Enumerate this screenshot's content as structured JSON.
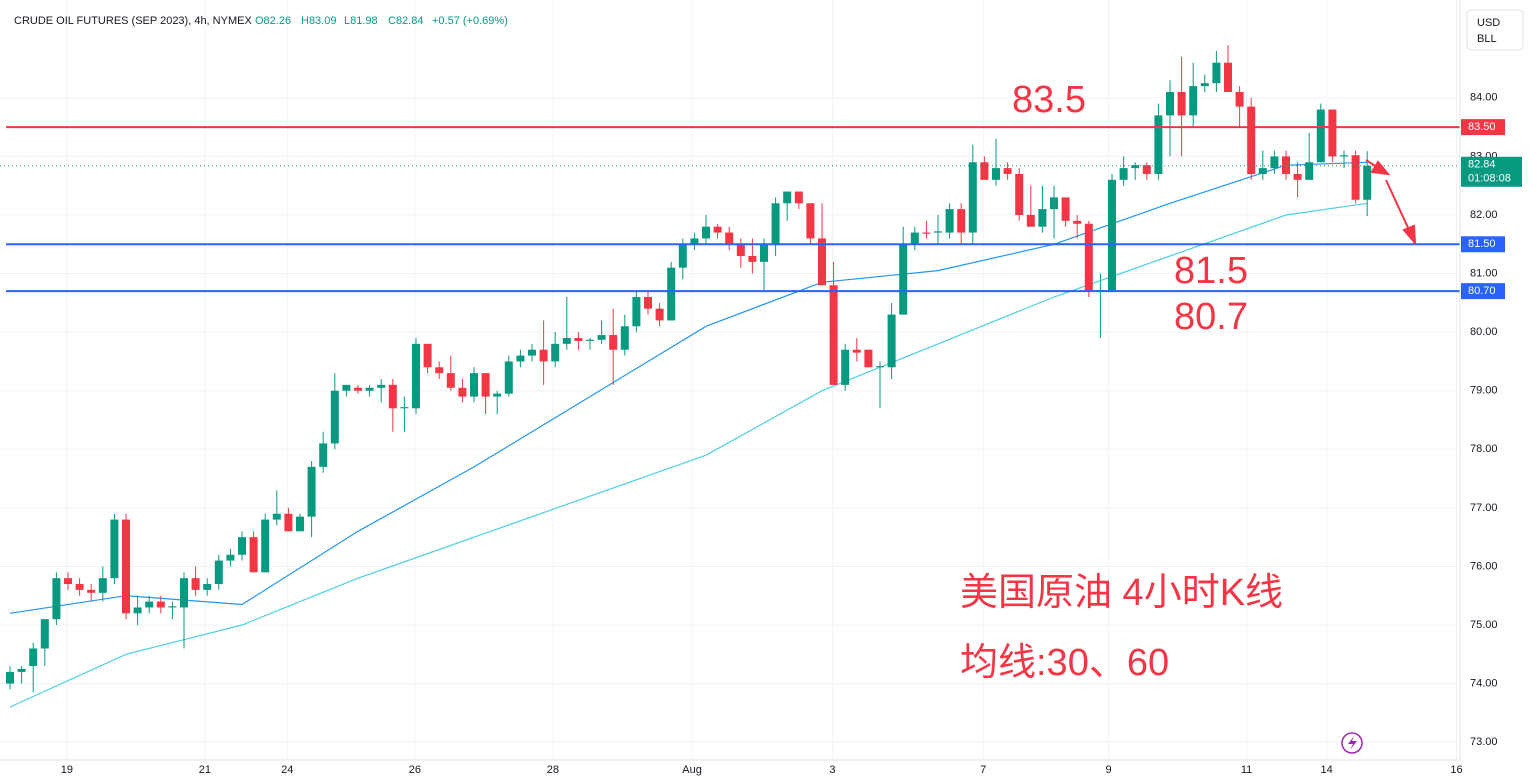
{
  "chart_data": {
    "type": "candlestick",
    "header": {
      "title": "CRUDE OIL FUTURES (SEP 2023), 4h, NYMEX",
      "open": "O82.26",
      "high": "H83.09",
      "low": "L81.98",
      "close": "C82.84",
      "change": "+0.57 (+0.69%)"
    },
    "currency": "USD",
    "unit": "BLL",
    "up_color": "#089981",
    "down_color": "#f23645",
    "candles": [
      [
        74.0,
        74.3,
        73.9,
        74.2
      ],
      [
        74.2,
        74.3,
        74.0,
        74.25
      ],
      [
        74.3,
        74.7,
        73.85,
        74.6
      ],
      [
        74.6,
        75.1,
        74.3,
        75.1
      ],
      [
        75.1,
        75.9,
        75.0,
        75.8
      ],
      [
        75.8,
        75.9,
        75.6,
        75.7
      ],
      [
        75.7,
        75.8,
        75.5,
        75.6
      ],
      [
        75.6,
        75.7,
        75.4,
        75.55
      ],
      [
        75.55,
        76.0,
        75.4,
        75.8
      ],
      [
        75.8,
        76.9,
        75.7,
        76.8
      ],
      [
        76.8,
        76.9,
        75.1,
        75.2
      ],
      [
        75.2,
        75.5,
        75.0,
        75.3
      ],
      [
        75.3,
        75.5,
        75.2,
        75.4
      ],
      [
        75.4,
        75.5,
        75.2,
        75.3
      ],
      [
        75.3,
        75.4,
        75.1,
        75.32
      ],
      [
        75.3,
        75.9,
        74.6,
        75.8
      ],
      [
        75.8,
        76.0,
        75.5,
        75.6
      ],
      [
        75.6,
        75.8,
        75.5,
        75.7
      ],
      [
        75.7,
        76.2,
        75.6,
        76.1
      ],
      [
        76.1,
        76.3,
        76.0,
        76.2
      ],
      [
        76.2,
        76.6,
        76.1,
        76.5
      ],
      [
        76.5,
        76.6,
        75.9,
        75.9
      ],
      [
        75.9,
        76.9,
        75.9,
        76.8
      ],
      [
        76.8,
        77.3,
        76.7,
        76.9
      ],
      [
        76.9,
        77.0,
        76.6,
        76.6
      ],
      [
        76.6,
        76.9,
        76.6,
        76.85
      ],
      [
        76.85,
        77.8,
        76.5,
        77.7
      ],
      [
        77.7,
        78.3,
        77.6,
        78.1
      ],
      [
        78.1,
        79.3,
        78.0,
        79.0
      ],
      [
        79.0,
        79.1,
        78.9,
        79.1
      ],
      [
        79.05,
        79.1,
        78.95,
        79.0
      ],
      [
        79.0,
        79.1,
        78.9,
        79.05
      ],
      [
        79.05,
        79.2,
        78.8,
        79.1
      ],
      [
        79.1,
        79.2,
        78.3,
        78.7
      ],
      [
        78.7,
        78.9,
        78.3,
        78.72
      ],
      [
        78.7,
        79.9,
        78.6,
        79.8
      ],
      [
        79.8,
        79.8,
        79.3,
        79.4
      ],
      [
        79.4,
        79.5,
        79.2,
        79.3
      ],
      [
        79.3,
        79.6,
        79.0,
        79.05
      ],
      [
        79.05,
        79.2,
        78.8,
        78.9
      ],
      [
        78.9,
        79.4,
        78.8,
        79.3
      ],
      [
        79.3,
        79.3,
        78.6,
        78.9
      ],
      [
        78.9,
        79.0,
        78.6,
        78.95
      ],
      [
        78.95,
        79.6,
        78.9,
        79.5
      ],
      [
        79.5,
        79.7,
        79.4,
        79.6
      ],
      [
        79.6,
        79.8,
        79.5,
        79.7
      ],
      [
        79.7,
        80.2,
        79.1,
        79.5
      ],
      [
        79.5,
        80.0,
        79.4,
        79.8
      ],
      [
        79.8,
        80.6,
        79.7,
        79.9
      ],
      [
        79.9,
        80.0,
        79.7,
        79.85
      ],
      [
        79.85,
        79.9,
        79.7,
        79.87
      ],
      [
        79.87,
        80.2,
        79.8,
        79.95
      ],
      [
        79.95,
        80.4,
        79.1,
        79.7
      ],
      [
        79.7,
        80.3,
        79.6,
        80.1
      ],
      [
        80.1,
        80.7,
        80.0,
        80.6
      ],
      [
        80.6,
        80.7,
        80.3,
        80.4
      ],
      [
        80.4,
        80.5,
        80.1,
        80.2
      ],
      [
        80.2,
        81.2,
        80.2,
        81.1
      ],
      [
        81.1,
        81.6,
        80.9,
        81.5
      ],
      [
        81.5,
        81.7,
        81.4,
        81.6
      ],
      [
        81.6,
        82.0,
        81.5,
        81.8
      ],
      [
        81.8,
        81.85,
        81.6,
        81.7
      ],
      [
        81.7,
        81.8,
        81.4,
        81.5
      ],
      [
        81.5,
        81.6,
        81.1,
        81.3
      ],
      [
        81.3,
        81.6,
        81.0,
        81.2
      ],
      [
        81.2,
        81.6,
        80.7,
        81.5
      ],
      [
        81.5,
        82.3,
        81.3,
        82.2
      ],
      [
        82.2,
        82.4,
        81.9,
        82.4
      ],
      [
        82.4,
        82.4,
        82.1,
        82.2
      ],
      [
        82.2,
        82.2,
        81.5,
        81.6
      ],
      [
        81.6,
        82.2,
        80.8,
        80.8
      ],
      [
        80.8,
        81.2,
        79.1,
        79.1
      ],
      [
        79.1,
        79.8,
        79.0,
        79.7
      ],
      [
        79.7,
        79.9,
        79.5,
        79.65
      ],
      [
        79.7,
        79.7,
        79.4,
        79.4
      ],
      [
        79.4,
        79.5,
        78.7,
        79.42
      ],
      [
        79.4,
        80.5,
        79.2,
        80.3
      ],
      [
        80.3,
        81.8,
        80.3,
        81.5
      ],
      [
        81.5,
        81.8,
        81.4,
        81.7
      ],
      [
        81.7,
        81.9,
        81.6,
        81.68
      ],
      [
        81.7,
        82.0,
        81.5,
        81.72
      ],
      [
        81.7,
        82.2,
        81.6,
        82.1
      ],
      [
        82.1,
        82.2,
        81.5,
        81.7
      ],
      [
        81.7,
        83.2,
        81.5,
        82.9
      ],
      [
        82.9,
        83.0,
        82.6,
        82.6
      ],
      [
        82.6,
        83.3,
        82.5,
        82.8
      ],
      [
        82.8,
        82.9,
        82.6,
        82.7
      ],
      [
        82.7,
        82.8,
        81.9,
        82.0
      ],
      [
        82.0,
        82.5,
        81.8,
        81.8
      ],
      [
        81.8,
        82.5,
        81.7,
        82.1
      ],
      [
        82.1,
        82.5,
        81.6,
        82.3
      ],
      [
        82.3,
        82.3,
        81.8,
        81.9
      ],
      [
        81.9,
        82.0,
        81.6,
        81.85
      ],
      [
        81.85,
        81.9,
        80.6,
        80.7
      ],
      [
        80.7,
        81.0,
        79.9,
        80.72
      ],
      [
        80.7,
        82.7,
        80.7,
        82.6
      ],
      [
        82.6,
        83.0,
        82.5,
        82.8
      ],
      [
        82.8,
        82.9,
        82.6,
        82.85
      ],
      [
        82.85,
        82.9,
        82.6,
        82.7
      ],
      [
        82.7,
        83.9,
        82.6,
        83.7
      ],
      [
        83.7,
        84.3,
        83.0,
        84.1
      ],
      [
        84.1,
        84.7,
        83.0,
        83.7
      ],
      [
        83.7,
        84.6,
        83.5,
        84.2
      ],
      [
        84.2,
        84.4,
        84.1,
        84.25
      ],
      [
        84.25,
        84.8,
        84.1,
        84.6
      ],
      [
        84.6,
        84.9,
        84.1,
        84.1
      ],
      [
        84.1,
        84.2,
        83.5,
        83.85
      ],
      [
        83.85,
        84.0,
        82.6,
        82.7
      ],
      [
        82.7,
        83.1,
        82.6,
        82.8
      ],
      [
        82.8,
        83.1,
        82.7,
        83.0
      ],
      [
        83.0,
        83.1,
        82.6,
        82.7
      ],
      [
        82.7,
        82.9,
        82.3,
        82.6
      ],
      [
        82.6,
        83.4,
        82.6,
        82.9
      ],
      [
        82.9,
        83.9,
        82.9,
        83.8
      ],
      [
        83.8,
        83.8,
        82.9,
        83.0
      ],
      [
        83.0,
        83.1,
        82.8,
        83.02
      ],
      [
        83.02,
        83.1,
        82.2,
        82.26
      ],
      [
        82.26,
        83.09,
        81.98,
        82.84
      ]
    ],
    "series": [
      {
        "color": "#2196f3",
        "x": [
          0,
          10,
          20,
          30,
          40,
          50,
          60,
          70,
          80,
          90,
          100,
          110,
          117
        ],
        "values": [
          75.2,
          75.5,
          75.35,
          76.6,
          77.7,
          78.9,
          80.1,
          80.85,
          81.05,
          81.5,
          82.2,
          82.85,
          82.9
        ]
      },
      {
        "color": "#4dd0e1",
        "x": [
          0,
          10,
          20,
          30,
          40,
          50,
          60,
          70,
          80,
          90,
          100,
          110,
          117
        ],
        "values": [
          73.6,
          74.5,
          75.0,
          75.8,
          76.5,
          77.2,
          77.9,
          79.0,
          79.8,
          80.6,
          81.3,
          82.0,
          82.2
        ]
      }
    ],
    "levels": [
      {
        "value": 83.5,
        "label": "83.50",
        "color": "#f23645"
      },
      {
        "value": 81.5,
        "label": "81.50",
        "color": "#2962ff"
      },
      {
        "value": 80.7,
        "label": "80.70",
        "color": "#2962ff"
      }
    ],
    "last_price": {
      "value": 82.84,
      "label": "82.84",
      "countdown": "01:08:08"
    },
    "annotations": [
      "83.5",
      "81.5",
      "80.7",
      "美国原油 4小时K线",
      "均线:30、60"
    ],
    "xlim": [
      -0.862,
      125
    ],
    "ylim": [
      72.73,
      85.67
    ],
    "yticks": [
      {
        "value": 73,
        "label": "73.00"
      },
      {
        "value": 74,
        "label": "74.00"
      },
      {
        "value": 75,
        "label": "75.00"
      },
      {
        "value": 76,
        "label": "76.00"
      },
      {
        "value": 77,
        "label": "77.00"
      },
      {
        "value": 78,
        "label": "78.00"
      },
      {
        "value": 79,
        "label": "79.00"
      },
      {
        "value": 80,
        "label": "80.00"
      },
      {
        "value": 81,
        "label": "81.00"
      },
      {
        "value": 82,
        "label": "82.00"
      },
      {
        "value": 83,
        "label": "83.00"
      },
      {
        "value": 84,
        "label": "84.00"
      }
    ],
    "xticks": [
      {
        "value": 4.9,
        "label": "19"
      },
      {
        "value": 16.8,
        "label": "21"
      },
      {
        "value": 23.9,
        "label": "24"
      },
      {
        "value": 34.9,
        "label": "26"
      },
      {
        "value": 46.8,
        "label": "28"
      },
      {
        "value": 58.8,
        "label": "Aug"
      },
      {
        "value": 70.9,
        "label": "3"
      },
      {
        "value": 83.9,
        "label": "7"
      },
      {
        "value": 94.7,
        "label": "9"
      },
      {
        "value": 106.6,
        "label": "11"
      },
      {
        "value": 113.5,
        "label": "14"
      },
      {
        "value": 124.7,
        "label": "16"
      }
    ],
    "grid": true
  }
}
